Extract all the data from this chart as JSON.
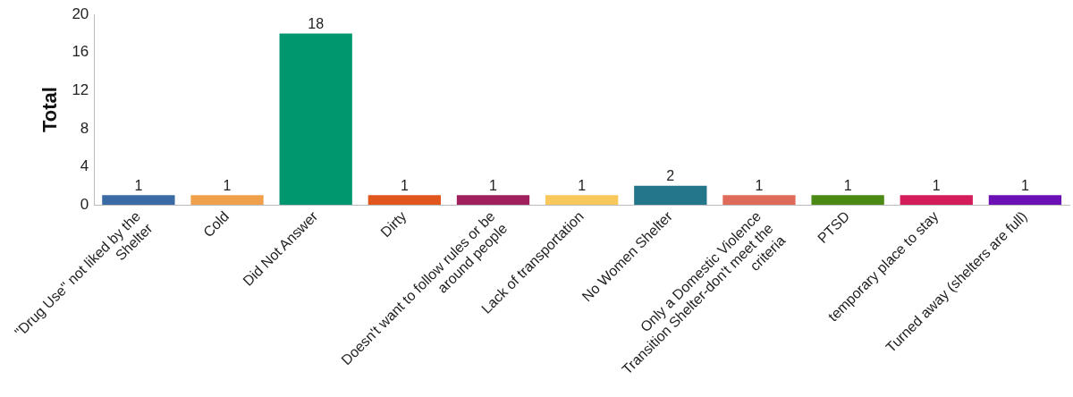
{
  "chart_data": {
    "type": "bar",
    "ylabel": "Total",
    "categories": [
      "\"Drug Use\" not liked by the Shelter",
      "Cold",
      "Did Not Answer",
      "Dirty",
      "Doesn't want to follow rules or be around people",
      "Lack of transportation",
      "No Women Shelter",
      "Only a Domestic Violence Transition Shelter-don't meet the criteria",
      "PTSD",
      "temporary place to stay",
      "Turned away (shelters are full)"
    ],
    "values": [
      1,
      1,
      18,
      1,
      1,
      1,
      2,
      1,
      1,
      1,
      1
    ],
    "colors": [
      "#3b6ba5",
      "#f0a04b",
      "#00966e",
      "#e0561c",
      "#a0205e",
      "#f8c85a",
      "#24768a",
      "#e06a5a",
      "#4a8a14",
      "#d41c5a",
      "#6a10b4"
    ],
    "ylim": [
      0,
      20
    ],
    "yticks": [
      0,
      4,
      8,
      12,
      16,
      20
    ],
    "grid": false,
    "legend": false,
    "data_labels": true
  }
}
